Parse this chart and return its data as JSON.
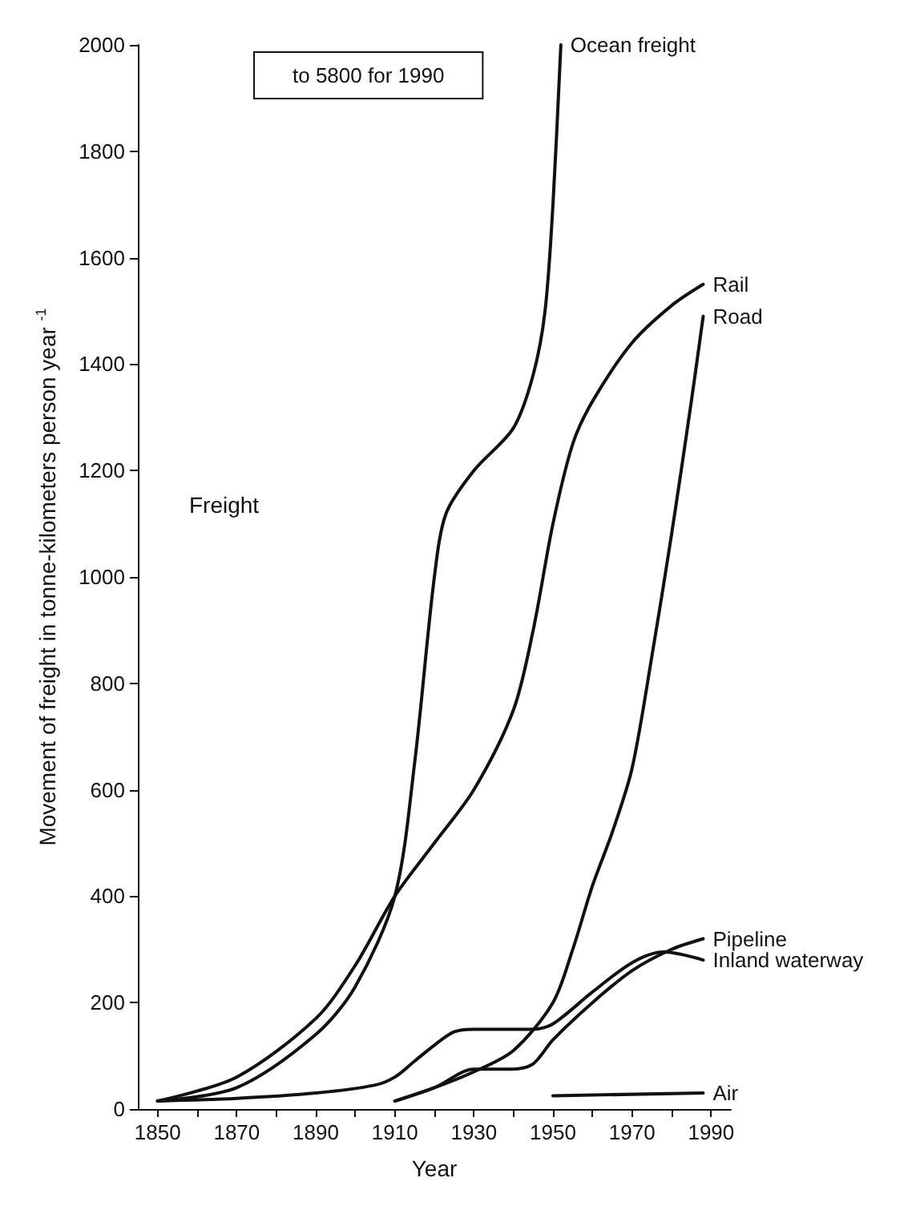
{
  "chart_data": {
    "type": "line",
    "xlabel": "Year",
    "ylabel": "Movement of freight in tonne-kilometers person year $^{-1}$",
    "annotations": [
      "to 5800 for 1990",
      "Freight"
    ],
    "xlim": [
      1845,
      1995
    ],
    "ylim": [
      0,
      2000
    ],
    "xticks": [
      1850,
      {
        "value": 1860,
        "label": null
      },
      1870,
      {
        "value": 1880,
        "label": null
      },
      1890,
      {
        "value": 1900,
        "label": null
      },
      1910,
      {
        "value": 1920,
        "label": null
      },
      1930,
      {
        "value": 1940,
        "label": null
      },
      1950,
      {
        "value": 1960,
        "label": null
      },
      1970,
      {
        "value": 1980,
        "label": null
      },
      1990
    ],
    "yticks": [
      0,
      200,
      400,
      600,
      800,
      1000,
      1200,
      1400,
      1600,
      1800,
      2000
    ],
    "grid": false,
    "legend": false,
    "marker": "none",
    "line_style": "solid",
    "series": [
      {
        "name": "Ocean freight",
        "color": "#111111",
        "x": [
          1850,
          1870,
          1890,
          1900,
          1910,
          1915,
          1920,
          1923,
          1930,
          1940,
          1945,
          1948,
          1950,
          1952
        ],
        "values": [
          15,
          40,
          140,
          230,
          400,
          650,
          1000,
          1120,
          1200,
          1280,
          1380,
          1500,
          1700,
          2000
        ]
      },
      {
        "name": "Rail",
        "color": "#111111",
        "x": [
          1850,
          1870,
          1890,
          1900,
          1910,
          1920,
          1930,
          1940,
          1945,
          1950,
          1955,
          1960,
          1970,
          1980,
          1988
        ],
        "values": [
          15,
          60,
          170,
          270,
          400,
          500,
          600,
          750,
          900,
          1100,
          1250,
          1330,
          1440,
          1510,
          1550
        ]
      },
      {
        "name": "Road",
        "color": "#111111",
        "x": [
          1910,
          1920,
          1930,
          1940,
          1950,
          1955,
          1960,
          1965,
          1970,
          1975,
          1980,
          1985,
          1988
        ],
        "values": [
          15,
          40,
          70,
          110,
          200,
          300,
          420,
          520,
          640,
          850,
          1080,
          1330,
          1490
        ]
      },
      {
        "name": "Inland waterway",
        "color": "#111111",
        "x": [
          1850,
          1870,
          1890,
          1905,
          1910,
          1915,
          1920,
          1925,
          1930,
          1945,
          1950,
          1960,
          1970,
          1978,
          1988
        ],
        "values": [
          15,
          20,
          30,
          45,
          60,
          90,
          120,
          145,
          150,
          150,
          160,
          220,
          275,
          295,
          280
        ]
      },
      {
        "name": "Pipeline",
        "color": "#111111",
        "x": [
          1910,
          1920,
          1930,
          1940,
          1945,
          1950,
          1960,
          1970,
          1980,
          1988
        ],
        "values": [
          15,
          40,
          75,
          75,
          85,
          130,
          200,
          260,
          300,
          320
        ]
      },
      {
        "name": "Air",
        "color": "#111111",
        "x": [
          1950,
          1988
        ],
        "values": [
          25,
          30
        ]
      }
    ]
  }
}
